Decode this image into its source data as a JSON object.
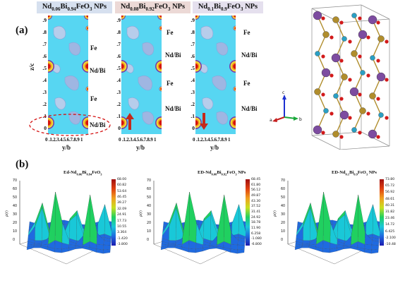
{
  "panel_a": {
    "label": "(a)",
    "maps": [
      {
        "title_parts": [
          "Nd",
          "0.06",
          "Bi",
          "0.94",
          "FeO",
          "3",
          " NPs"
        ],
        "title_bg": "#d6e0ef",
        "site_labels": [
          "Fe",
          "Nd/Bi",
          "Fe",
          "Nd/Bi"
        ],
        "arrow": "none",
        "highlight": true
      },
      {
        "title_parts": [
          "Nd",
          "0.08",
          "Bi",
          "0.92",
          "FeO",
          "3",
          " NPs"
        ],
        "title_bg": "#ecd9d6",
        "site_labels": [
          "Fe",
          "Nd/Bi",
          "Fe",
          "Nd/Bi"
        ],
        "arrow": "up",
        "highlight": false
      },
      {
        "title_parts": [
          "Nd",
          "0.1",
          "Bi",
          "0.9",
          "FeO",
          "3",
          " NPs"
        ],
        "title_bg": "#e5e0ee",
        "site_labels": [
          "Fe",
          "Nd/Bi",
          "Fe",
          "Nd/Bi"
        ],
        "arrow": "down",
        "highlight": false
      }
    ],
    "y_ticks": [
      ".9",
      ".8",
      ".7",
      ".6",
      ".5",
      ".4",
      ".3",
      ".2",
      ".1",
      "0"
    ],
    "x_ticks": "0 .1.2.3.4.5.6.7.8.9 1",
    "y_axis_label": "z/c",
    "x_axis_label": "y/b",
    "crystal_axes": {
      "c": "c",
      "a": "a",
      "b": "b"
    }
  },
  "panel_b": {
    "label": "(b)",
    "surfaces": [
      {
        "title_parts": [
          "Ed-Nd",
          "0.06",
          "Bi",
          "0.94",
          "FeO",
          "3"
        ],
        "z_ticks": [
          "70",
          "60",
          "50",
          "40",
          "30",
          "20",
          "10",
          "0"
        ],
        "cbar_ticks": [
          "68.00",
          "60.82",
          "53.64",
          "46.45",
          "39.27",
          "32.09",
          "24.91",
          "17.73",
          "10.55",
          "3.364",
          "-1.420",
          "-3.800"
        ]
      },
      {
        "title_parts": [
          "ED-Nd",
          "0.08",
          "Bi",
          "0.92",
          "FeO",
          "3",
          " NPs"
        ],
        "z_ticks": [
          "70",
          "60",
          "50",
          "40",
          "30",
          "20",
          "10",
          "0"
        ],
        "cbar_ticks": [
          "68.45",
          "61.80",
          "56.12",
          "49.87",
          "43.30",
          "37.52",
          "31.41",
          "24.92",
          "18.78",
          "11.90",
          "6.258",
          "-1.080",
          "-6.800"
        ]
      },
      {
        "title_parts": [
          "ED-Nd",
          "0.1",
          "Bi",
          "0.9",
          "FeO",
          "3",
          " NPs"
        ],
        "z_ticks": [
          "70",
          "60",
          "50",
          "40",
          "30",
          "20",
          "10",
          "0"
        ],
        "cbar_ticks": [
          "73.80",
          "65.72",
          "56.92",
          "48.61",
          "40.31",
          "31.82",
          "23.46",
          "14.72",
          "6.425",
          "-2.100",
          "-10.48"
        ]
      }
    ],
    "z_axis_label": "ρ(r)"
  },
  "colors": {
    "map_bg": "#57d6f2",
    "contour_light": "#b7cdeb",
    "contour_mid": "#9fb6e2",
    "atom_core": "#d4140f",
    "atom_ring": "#f2e433",
    "highlight": "#d51313",
    "arrow": "#c42a1a"
  }
}
